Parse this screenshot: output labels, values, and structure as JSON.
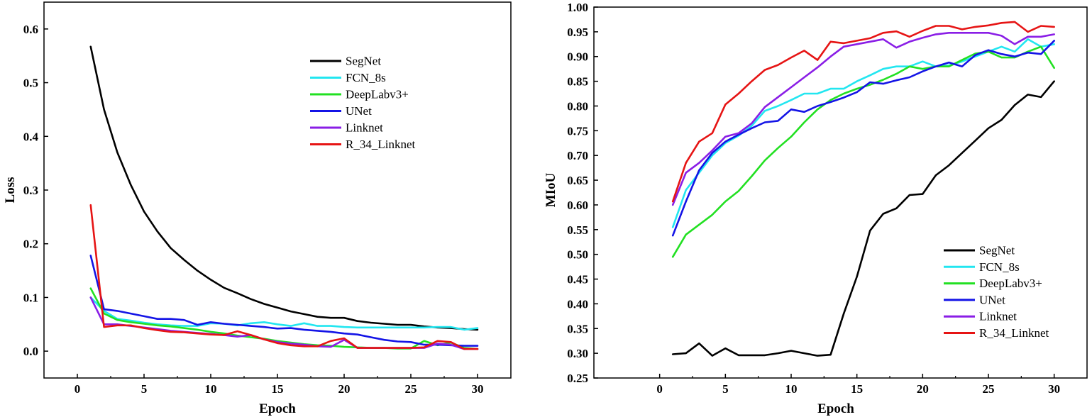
{
  "chart_data": [
    {
      "type": "line",
      "xlabel": "Epoch",
      "ylabel": "Loss",
      "xlim": [
        -2.5,
        32.5
      ],
      "ylim": [
        -0.05,
        0.65
      ],
      "xticks": [
        "0",
        "5",
        "10",
        "15",
        "20",
        "25",
        "30"
      ],
      "xtick_values": [
        0,
        5,
        10,
        15,
        20,
        25,
        30
      ],
      "yticks": [
        "0.0",
        "0.1",
        "0.2",
        "0.3",
        "0.4",
        "0.5",
        "0.6"
      ],
      "ytick_values": [
        0,
        0.1,
        0.2,
        0.3,
        0.4,
        0.5,
        0.6
      ],
      "grid": false,
      "legend_position": "top-right",
      "x": [
        1,
        2,
        3,
        4,
        5,
        6,
        7,
        8,
        9,
        10,
        11,
        12,
        13,
        14,
        15,
        16,
        17,
        18,
        19,
        20,
        21,
        22,
        23,
        24,
        25,
        26,
        27,
        28,
        29,
        30
      ],
      "series": [
        {
          "name": "SegNet",
          "color": "#000000",
          "values": [
            0.567,
            0.45,
            0.37,
            0.31,
            0.26,
            0.223,
            0.192,
            0.17,
            0.15,
            0.133,
            0.118,
            0.108,
            0.097,
            0.088,
            0.081,
            0.074,
            0.069,
            0.064,
            0.062,
            0.062,
            0.056,
            0.053,
            0.051,
            0.049,
            0.049,
            0.046,
            0.044,
            0.043,
            0.041,
            0.04
          ]
        },
        {
          "name": "FCN_8s",
          "color": "#22e6f0",
          "values": [
            0.1,
            0.075,
            0.06,
            0.057,
            0.053,
            0.05,
            0.048,
            0.047,
            0.047,
            0.052,
            0.051,
            0.048,
            0.052,
            0.054,
            0.05,
            0.047,
            0.052,
            0.047,
            0.047,
            0.045,
            0.044,
            0.044,
            0.044,
            0.044,
            0.044,
            0.044,
            0.045,
            0.045,
            0.04,
            0.043
          ]
        },
        {
          "name": "DeepLabv3+",
          "color": "#22e022",
          "values": [
            0.117,
            0.07,
            0.058,
            0.054,
            0.051,
            0.048,
            0.046,
            0.043,
            0.04,
            0.036,
            0.033,
            0.029,
            0.026,
            0.023,
            0.019,
            0.016,
            0.013,
            0.011,
            0.01,
            0.008,
            0.007,
            0.006,
            0.006,
            0.005,
            0.005,
            0.019,
            0.011,
            0.016,
            0.006,
            0.004
          ]
        },
        {
          "name": "UNet",
          "color": "#1414e6",
          "values": [
            0.178,
            0.078,
            0.075,
            0.07,
            0.065,
            0.06,
            0.06,
            0.058,
            0.049,
            0.054,
            0.051,
            0.049,
            0.047,
            0.045,
            0.042,
            0.043,
            0.04,
            0.038,
            0.036,
            0.033,
            0.031,
            0.026,
            0.021,
            0.018,
            0.017,
            0.012,
            0.012,
            0.011,
            0.01,
            0.01
          ]
        },
        {
          "name": "Linknet",
          "color": "#8a1ee6",
          "values": [
            0.1,
            0.05,
            0.05,
            0.047,
            0.044,
            0.041,
            0.038,
            0.036,
            0.034,
            0.032,
            0.03,
            0.027,
            0.03,
            0.022,
            0.017,
            0.014,
            0.012,
            0.009,
            0.008,
            0.021,
            0.006,
            0.006,
            0.006,
            0.006,
            0.006,
            0.006,
            0.014,
            0.012,
            0.004,
            0.004
          ]
        },
        {
          "name": "R_34_Linknet",
          "color": "#e61414",
          "values": [
            0.272,
            0.045,
            0.048,
            0.048,
            0.043,
            0.039,
            0.036,
            0.035,
            0.033,
            0.031,
            0.03,
            0.037,
            0.03,
            0.022,
            0.015,
            0.011,
            0.009,
            0.009,
            0.019,
            0.024,
            0.006,
            0.006,
            0.006,
            0.006,
            0.006,
            0.007,
            0.019,
            0.017,
            0.004,
            0.004
          ]
        }
      ]
    },
    {
      "type": "line",
      "xlabel": "Epoch",
      "ylabel": "MIoU",
      "xlim": [
        -5,
        32.5
      ],
      "ylim": [
        0.25,
        1.0
      ],
      "xticks": [
        "0",
        "5",
        "10",
        "15",
        "20",
        "25",
        "30"
      ],
      "xtick_values": [
        0,
        5,
        10,
        15,
        20,
        25,
        30
      ],
      "yticks": [
        "0.25",
        "0.30",
        "0.35",
        "0.40",
        "0.45",
        "0.50",
        "0.55",
        "0.60",
        "0.65",
        "0.70",
        "0.75",
        "0.80",
        "0.85",
        "0.90",
        "0.95",
        "1.00"
      ],
      "ytick_values": [
        0.25,
        0.3,
        0.35,
        0.4,
        0.45,
        0.5,
        0.55,
        0.6,
        0.65,
        0.7,
        0.75,
        0.8,
        0.85,
        0.9,
        0.95,
        1.0
      ],
      "grid": false,
      "legend_position": "bottom-right",
      "x": [
        1,
        2,
        3,
        4,
        5,
        6,
        7,
        8,
        9,
        10,
        11,
        12,
        13,
        14,
        15,
        16,
        17,
        18,
        19,
        20,
        21,
        22,
        23,
        24,
        25,
        26,
        27,
        28,
        29,
        30
      ],
      "series": [
        {
          "name": "SegNet",
          "color": "#000000",
          "values": [
            0.298,
            0.3,
            0.32,
            0.295,
            0.31,
            0.296,
            0.296,
            0.296,
            0.3,
            0.305,
            0.3,
            0.295,
            0.297,
            0.38,
            0.455,
            0.548,
            0.582,
            0.593,
            0.62,
            0.622,
            0.66,
            0.68,
            0.705,
            0.73,
            0.755,
            0.772,
            0.802,
            0.823,
            0.818,
            0.85
          ]
        },
        {
          "name": "FCN_8s",
          "color": "#22e6f0",
          "values": [
            0.555,
            0.63,
            0.665,
            0.7,
            0.725,
            0.74,
            0.76,
            0.79,
            0.8,
            0.812,
            0.825,
            0.825,
            0.835,
            0.835,
            0.85,
            0.862,
            0.875,
            0.88,
            0.88,
            0.89,
            0.88,
            0.882,
            0.89,
            0.9,
            0.91,
            0.92,
            0.91,
            0.935,
            0.92,
            0.925
          ]
        },
        {
          "name": "DeepLabv3+",
          "color": "#22e022",
          "values": [
            0.495,
            0.54,
            0.56,
            0.58,
            0.607,
            0.628,
            0.658,
            0.69,
            0.715,
            0.738,
            0.767,
            0.793,
            0.812,
            0.825,
            0.835,
            0.843,
            0.853,
            0.865,
            0.88,
            0.875,
            0.88,
            0.88,
            0.893,
            0.906,
            0.91,
            0.898,
            0.898,
            0.91,
            0.92,
            0.877
          ]
        },
        {
          "name": "UNet",
          "color": "#1414e6",
          "values": [
            0.538,
            0.607,
            0.67,
            0.705,
            0.728,
            0.742,
            0.755,
            0.767,
            0.77,
            0.793,
            0.788,
            0.8,
            0.808,
            0.817,
            0.828,
            0.848,
            0.845,
            0.852,
            0.858,
            0.87,
            0.88,
            0.888,
            0.88,
            0.903,
            0.913,
            0.905,
            0.9,
            0.908,
            0.905,
            0.932
          ]
        },
        {
          "name": "Linknet",
          "color": "#8a1ee6",
          "values": [
            0.6,
            0.665,
            0.685,
            0.71,
            0.738,
            0.745,
            0.765,
            0.798,
            0.818,
            0.838,
            0.858,
            0.878,
            0.9,
            0.92,
            0.925,
            0.93,
            0.935,
            0.918,
            0.93,
            0.938,
            0.945,
            0.948,
            0.948,
            0.948,
            0.948,
            0.942,
            0.925,
            0.94,
            0.94,
            0.945
          ]
        },
        {
          "name": "R_34_Linknet",
          "color": "#e61414",
          "values": [
            0.607,
            0.685,
            0.728,
            0.745,
            0.803,
            0.825,
            0.85,
            0.873,
            0.883,
            0.898,
            0.912,
            0.893,
            0.93,
            0.927,
            0.932,
            0.937,
            0.948,
            0.951,
            0.94,
            0.952,
            0.962,
            0.962,
            0.955,
            0.96,
            0.963,
            0.968,
            0.97,
            0.95,
            0.962,
            0.96
          ]
        }
      ]
    }
  ]
}
